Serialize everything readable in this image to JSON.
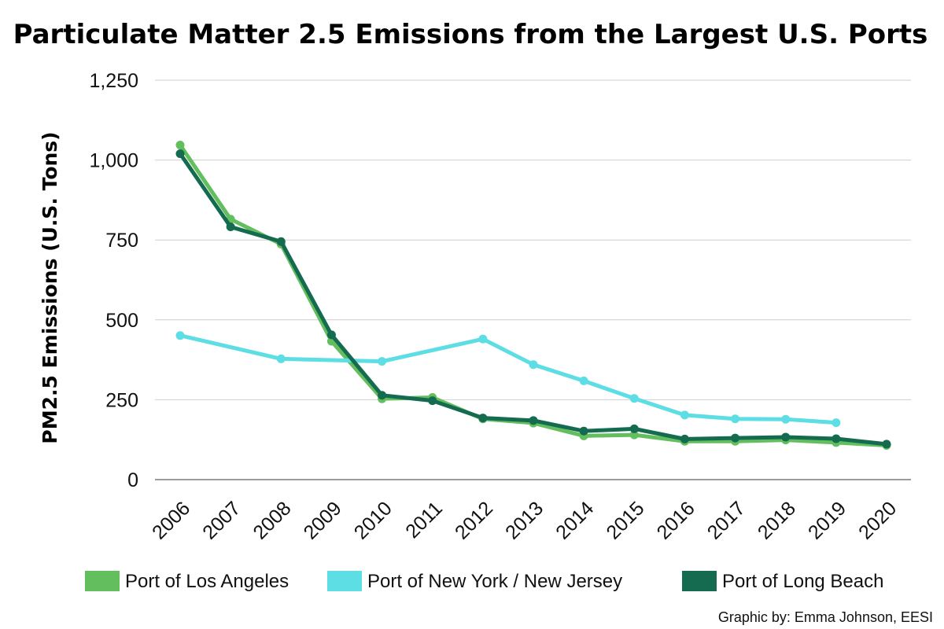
{
  "chart_data": {
    "type": "line",
    "title": "Particulate Matter 2.5 Emissions from the Largest U.S. Ports",
    "xlabel": "",
    "ylabel": "PM2.5 Emissions (U.S. Tons)",
    "ylim": [
      0,
      1250
    ],
    "yticks": [
      "0",
      "250",
      "500",
      "750",
      "1,000",
      "1,250"
    ],
    "ytick_values": [
      0,
      250,
      500,
      750,
      1000,
      1250
    ],
    "categories": [
      "2006",
      "2007",
      "2008",
      "2009",
      "2010",
      "2011",
      "2012",
      "2013",
      "2014",
      "2015",
      "2016",
      "2017",
      "2018",
      "2019",
      "2020"
    ],
    "grid": "horizontal",
    "legend_position": "bottom",
    "series": [
      {
        "name": "Port of Los Angeles",
        "color": "#63be5e",
        "values": [
          1047,
          815,
          737,
          433,
          253,
          257,
          190,
          177,
          137,
          140,
          120,
          120,
          124,
          116,
          107
        ]
      },
      {
        "name": "Port of New York / New Jersey",
        "color": "#5ddde4",
        "values": [
          451,
          null,
          378,
          null,
          370,
          null,
          440,
          360,
          309,
          254,
          202,
          190,
          189,
          178,
          null
        ]
      },
      {
        "name": "Port of Long Beach",
        "color": "#146b50",
        "values": [
          1020,
          791,
          745,
          453,
          264,
          247,
          193,
          185,
          152,
          159,
          127,
          130,
          133,
          128,
          111
        ]
      }
    ]
  },
  "credit": "Graphic by: Emma Johnson, EESI"
}
